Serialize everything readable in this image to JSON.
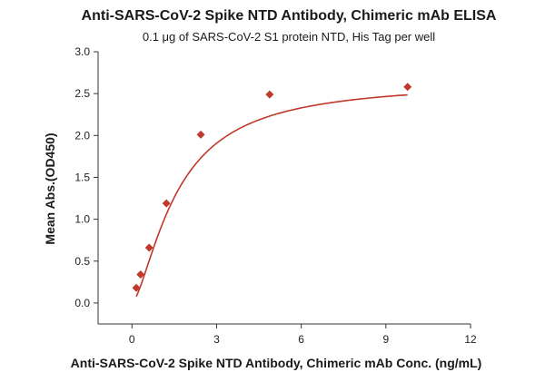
{
  "chart_data": {
    "type": "scatter",
    "title": "Anti-SARS-CoV-2 Spike NTD Antibody, Chimeric mAb ELISA",
    "subtitle": "0.1 μg of SARS-CoV-2 S1 protein NTD, His Tag per well",
    "xlabel": "Anti-SARS-CoV-2 Spike NTD Antibody, Chimeric mAb Conc. (ng/mL)",
    "ylabel": "Mean Abs.(OD450)",
    "xlim": [
      -1.2,
      12
    ],
    "ylim": [
      -0.25,
      3.0
    ],
    "xticks": [
      0,
      3,
      6,
      9,
      12
    ],
    "yticks": [
      0.0,
      0.5,
      1.0,
      1.5,
      2.0,
      2.5,
      3.0
    ],
    "xtick_labels": [
      "0",
      "3",
      "6",
      "9",
      "12"
    ],
    "ytick_labels": [
      "0.0",
      "0.5",
      "1.0",
      "1.5",
      "2.0",
      "2.5",
      "3.0"
    ],
    "grid": false,
    "color": "#c0392b",
    "marker": "diamond",
    "fit": "four-parameter logistic curve",
    "series": [
      {
        "x": [
          0.153,
          0.305,
          0.61,
          1.22,
          2.44,
          4.88,
          9.77
        ],
        "y": [
          0.18,
          0.34,
          0.66,
          1.19,
          2.01,
          2.49,
          2.58
        ]
      }
    ]
  }
}
